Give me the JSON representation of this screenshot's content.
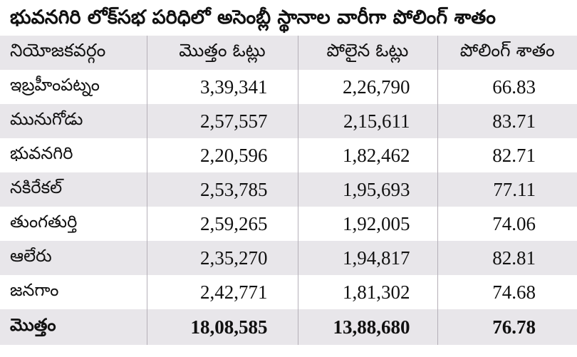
{
  "title": "భువనగిరి లోక్‌సభ పరిధిలో అసెంబ్లీ స్థానాల వారీగా పోలింగ్‌ శాతం",
  "headers": [
    "నియోజకవర్గం",
    "మొత్తం ఓట్లు",
    "పోలైన ఓట్లు",
    "పోలింగ్‌ శాతం"
  ],
  "rows": [
    {
      "constituency": "ఇబ్రహీంపట్నం",
      "total_votes": "3,39,341",
      "polled_votes": "2,26,790",
      "percent": "66.83"
    },
    {
      "constituency": "మునుగోడు",
      "total_votes": "2,57,557",
      "polled_votes": "2,15,611",
      "percent": "83.71"
    },
    {
      "constituency": "భువనగిరి",
      "total_votes": "2,20,596",
      "polled_votes": "1,82,462",
      "percent": "82.71"
    },
    {
      "constituency": "నకిరేకల్‌",
      "total_votes": "2,53,785",
      "polled_votes": "1,95,693",
      "percent": "77.11"
    },
    {
      "constituency": "తుంగతుర్తి",
      "total_votes": "2,59,265",
      "polled_votes": "1,92,005",
      "percent": "74.06"
    },
    {
      "constituency": "ఆలేరు",
      "total_votes": "2,35,270",
      "polled_votes": "1,94,817",
      "percent": "82.81"
    },
    {
      "constituency": "జనగాం",
      "total_votes": "2,42,771",
      "polled_votes": "1,81,302",
      "percent": "74.68"
    }
  ],
  "total": {
    "label": "మొత్తం",
    "total_votes": "18,08,585",
    "polled_votes": "13,88,680",
    "percent": "76.78"
  }
}
